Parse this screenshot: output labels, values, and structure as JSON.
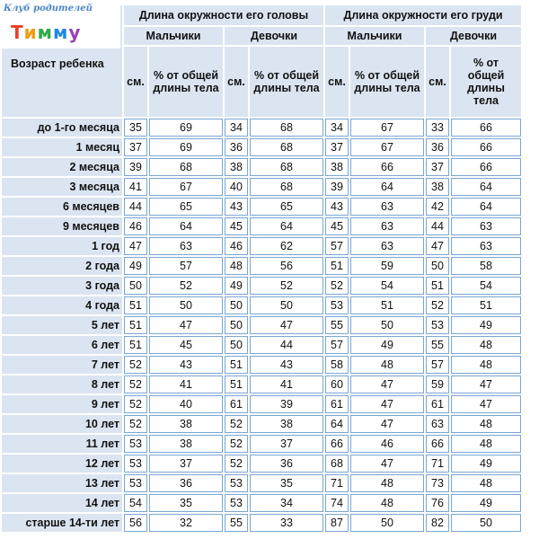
{
  "logo": {
    "club": "Клуб родителей",
    "brand": [
      "Т",
      "и",
      "м",
      "м",
      "у"
    ]
  },
  "headers": {
    "age": "Возраст ребенка",
    "head": "Длина окружности его головы",
    "chest": "Длина окружности его груди",
    "boys": "Мальчики",
    "girls": "Девочки",
    "cm": "см.",
    "pct": "% от общей длины тела"
  },
  "rows": [
    {
      "age": "до 1-го месяца",
      "hb": "35",
      "hbp": "69",
      "hg": "34",
      "hgp": "68",
      "cb": "34",
      "cbp": "67",
      "cg": "33",
      "cgp": "66"
    },
    {
      "age": "1 месяц",
      "hb": "37",
      "hbp": "69",
      "hg": "36",
      "hgp": "68",
      "cb": "37",
      "cbp": "67",
      "cg": "36",
      "cgp": "66"
    },
    {
      "age": "2 месяца",
      "hb": "39",
      "hbp": "68",
      "hg": "38",
      "hgp": "68",
      "cb": "38",
      "cbp": "66",
      "cg": "37",
      "cgp": "66"
    },
    {
      "age": "3 месяца",
      "hb": "41",
      "hbp": "67",
      "hg": "40",
      "hgp": "68",
      "cb": "39",
      "cbp": "64",
      "cg": "38",
      "cgp": "64"
    },
    {
      "age": "6 месяцев",
      "hb": "44",
      "hbp": "65",
      "hg": "43",
      "hgp": "65",
      "cb": "43",
      "cbp": "63",
      "cg": "42",
      "cgp": "64"
    },
    {
      "age": "9 месяцев",
      "hb": "46",
      "hbp": "64",
      "hg": "45",
      "hgp": "64",
      "cb": "45",
      "cbp": "63",
      "cg": "44",
      "cgp": "63"
    },
    {
      "age": "1 год",
      "hb": "47",
      "hbp": "63",
      "hg": "46",
      "hgp": "62",
      "cb": "57",
      "cbp": "63",
      "cg": "47",
      "cgp": "63"
    },
    {
      "age": "2 года",
      "hb": "49",
      "hbp": "57",
      "hg": "48",
      "hgp": "56",
      "cb": "51",
      "cbp": "59",
      "cg": "50",
      "cgp": "58"
    },
    {
      "age": "3 года",
      "hb": "50",
      "hbp": "52",
      "hg": "49",
      "hgp": "52",
      "cb": "52",
      "cbp": "54",
      "cg": "51",
      "cgp": "54"
    },
    {
      "age": "4 года",
      "hb": "51",
      "hbp": "50",
      "hg": "50",
      "hgp": "50",
      "cb": "53",
      "cbp": "51",
      "cg": "52",
      "cgp": "51"
    },
    {
      "age": "5 лет",
      "hb": "51",
      "hbp": "47",
      "hg": "50",
      "hgp": "47",
      "cb": "55",
      "cbp": "50",
      "cg": "53",
      "cgp": "49"
    },
    {
      "age": "6 лет",
      "hb": "51",
      "hbp": "45",
      "hg": "50",
      "hgp": "44",
      "cb": "57",
      "cbp": "49",
      "cg": "55",
      "cgp": "48"
    },
    {
      "age": "7 лет",
      "hb": "52",
      "hbp": "43",
      "hg": "51",
      "hgp": "43",
      "cb": "58",
      "cbp": "48",
      "cg": "57",
      "cgp": "48"
    },
    {
      "age": "8 лет",
      "hb": "52",
      "hbp": "41",
      "hg": "51",
      "hgp": "41",
      "cb": "60",
      "cbp": "47",
      "cg": "59",
      "cgp": "47"
    },
    {
      "age": "9 лет",
      "hb": "52",
      "hbp": "40",
      "hg": "61",
      "hgp": "39",
      "cb": "61",
      "cbp": "47",
      "cg": "61",
      "cgp": "47"
    },
    {
      "age": "10 лет",
      "hb": "52",
      "hbp": "38",
      "hg": "52",
      "hgp": "38",
      "cb": "64",
      "cbp": "47",
      "cg": "63",
      "cgp": "48"
    },
    {
      "age": "11 лет",
      "hb": "53",
      "hbp": "38",
      "hg": "52",
      "hgp": "37",
      "cb": "66",
      "cbp": "46",
      "cg": "66",
      "cgp": "48"
    },
    {
      "age": "12 лет",
      "hb": "53",
      "hbp": "37",
      "hg": "52",
      "hgp": "36",
      "cb": "68",
      "cbp": "47",
      "cg": "71",
      "cgp": "49"
    },
    {
      "age": "13 лет",
      "hb": "53",
      "hbp": "36",
      "hg": "53",
      "hgp": "35",
      "cb": "71",
      "cbp": "48",
      "cg": "73",
      "cgp": "48"
    },
    {
      "age": "14 лет",
      "hb": "54",
      "hbp": "35",
      "hg": "53",
      "hgp": "34",
      "cb": "74",
      "cbp": "48",
      "cg": "76",
      "cgp": "49"
    },
    {
      "age": "старше 14-ти лет",
      "hb": "56",
      "hbp": "32",
      "hg": "55",
      "hgp": "33",
      "cb": "87",
      "cbp": "50",
      "cg": "82",
      "cgp": "50"
    }
  ]
}
